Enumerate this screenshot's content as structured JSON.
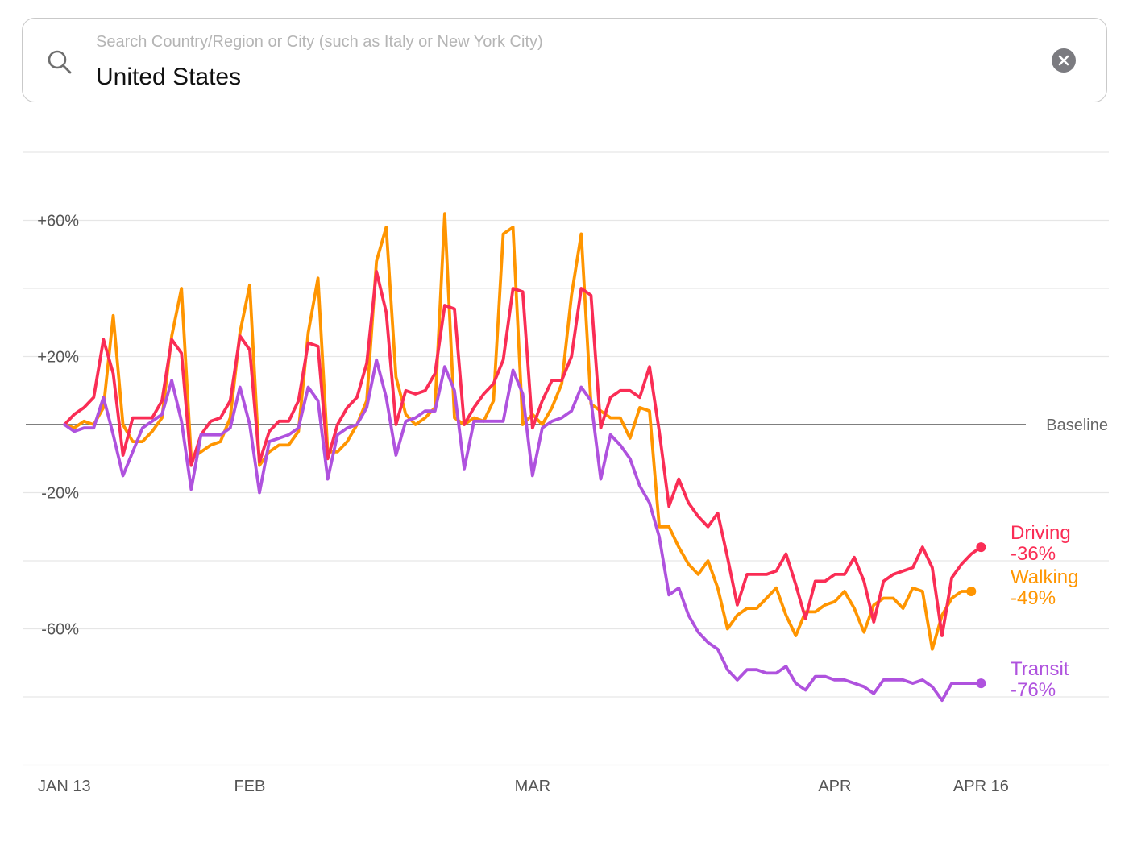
{
  "search": {
    "placeholder": "Search Country/Region or City (such as Italy or New York City)",
    "value": "United States"
  },
  "icons": {
    "search": "search-icon",
    "clear": "clear-icon"
  },
  "chart_data": {
    "type": "line",
    "x_start": "2020-01-13",
    "x_end": "2020-04-16",
    "x_ticks": [
      {
        "label": "JAN 13",
        "date": "2020-01-13"
      },
      {
        "label": "FEB",
        "date": "2020-02-01"
      },
      {
        "label": "MAR",
        "date": "2020-03-01"
      },
      {
        "label": "APR",
        "date": "2020-04-01"
      },
      {
        "label": "APR 16",
        "date": "2020-04-16"
      }
    ],
    "y_ticks": [
      {
        "label": "+60%",
        "value": 60
      },
      {
        "label": "+20%",
        "value": 20
      },
      {
        "label": "-20%",
        "value": -20
      },
      {
        "label": "-60%",
        "value": -60
      }
    ],
    "ylim": [
      -100,
      80
    ],
    "gridlines_y": [
      80,
      60,
      40,
      20,
      -20,
      -40,
      -60,
      -80,
      -100
    ],
    "baseline": {
      "label": "Baseline",
      "value": 0
    },
    "series": [
      {
        "name": "Driving",
        "end_label": "-36%",
        "color": "#fa2d55",
        "values": [
          0,
          3,
          5,
          8,
          25,
          15,
          -9,
          2,
          2,
          2,
          7,
          25,
          21,
          -12,
          -3,
          1,
          2,
          7,
          26,
          22,
          -11,
          -2,
          1,
          1,
          7,
          24,
          23,
          -10,
          0,
          5,
          8,
          18,
          45,
          33,
          0,
          10,
          9,
          10,
          15,
          35,
          34,
          0,
          5,
          9,
          12,
          19,
          40,
          39,
          -1,
          7,
          13,
          13,
          20,
          40,
          38,
          -1,
          8,
          10,
          10,
          8,
          17,
          -2,
          -24,
          -16,
          -23,
          -27,
          -30,
          -26,
          -39,
          -53,
          -44,
          -44,
          -44,
          -43,
          -38,
          -47,
          -57,
          -46,
          -46,
          -44,
          -44,
          -39,
          -46,
          -58,
          -46,
          -44,
          -43,
          -42,
          -36,
          -42,
          -62,
          -45,
          -41,
          -38,
          -36
        ]
      },
      {
        "name": "Walking",
        "end_label": "-49%",
        "color": "#ff9500",
        "values": [
          0,
          -1,
          1,
          0,
          5,
          32,
          0,
          -5,
          -5,
          -2,
          2,
          26,
          40,
          -10,
          -8,
          -6,
          -5,
          2,
          27,
          41,
          -12,
          -8,
          -6,
          -6,
          -2,
          27,
          43,
          -8,
          -8,
          -5,
          0,
          7,
          48,
          58,
          14,
          3,
          0,
          2,
          5,
          62,
          2,
          0,
          2,
          1,
          7,
          56,
          58,
          0,
          3,
          0,
          5,
          12,
          38,
          56,
          6,
          4,
          2,
          2,
          -4,
          5,
          4,
          -30,
          -30,
          -36,
          -41,
          -44,
          -40,
          -48,
          -60,
          -56,
          -54,
          -54,
          -51,
          -48,
          -56,
          -62,
          -55,
          -55,
          -53,
          -52,
          -49,
          -54,
          -61,
          -53,
          -51,
          -51,
          -54,
          -48,
          -49,
          -66,
          -56,
          -51,
          -49,
          -49
        ]
      },
      {
        "name": "Transit",
        "end_label": "-76%",
        "color": "#af52de",
        "values": [
          0,
          -2,
          -1,
          -1,
          8,
          -3,
          -15,
          -8,
          -1,
          1,
          3,
          13,
          1,
          -19,
          -3,
          -3,
          -3,
          -1,
          11,
          0,
          -20,
          -5,
          -4,
          -3,
          -1,
          11,
          7,
          -16,
          -3,
          -1,
          0,
          5,
          19,
          8,
          -9,
          1,
          2,
          4,
          4,
          17,
          10,
          -13,
          1,
          1,
          1,
          1,
          16,
          9,
          -15,
          -1,
          1,
          2,
          4,
          11,
          7,
          -16,
          -3,
          -6,
          -10,
          -18,
          -23,
          -33,
          -50,
          -48,
          -56,
          -61,
          -64,
          -66,
          -72,
          -75,
          -72,
          -72,
          -73,
          -73,
          -71,
          -76,
          -78,
          -74,
          -74,
          -75,
          -75,
          -76,
          -77,
          -79,
          -75,
          -75,
          -75,
          -76,
          -75,
          -77,
          -81,
          -76,
          -76,
          -76,
          -76
        ]
      }
    ]
  }
}
